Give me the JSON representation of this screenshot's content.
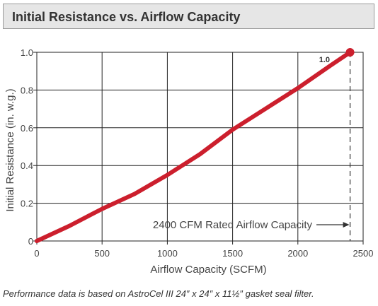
{
  "title": "Initial Resistance vs. Airflow Capacity",
  "caption": "Performance data is based on AstroCel III 24″ x 24″ x 11½″ gasket seal filter.",
  "chart_data": {
    "type": "line",
    "xlabel": "Airflow Capacity (SCFM)",
    "ylabel": "Initial Resistance (in. w.g.)",
    "xlim": [
      0,
      2500
    ],
    "ylim": [
      0,
      1.0
    ],
    "x_ticks": [
      "0",
      "500",
      "1000",
      "1500",
      "2000",
      "2500"
    ],
    "y_ticks": [
      "0",
      "0.2",
      "0.4",
      "0.6",
      "0.8",
      "1.0"
    ],
    "grid": true,
    "series": [
      {
        "x": [
          0,
          250,
          500,
          750,
          1000,
          1250,
          1500,
          1750,
          2000,
          2250,
          2400
        ],
        "y": [
          0,
          0.08,
          0.17,
          0.25,
          0.35,
          0.46,
          0.59,
          0.7,
          0.81,
          0.93,
          1.0
        ],
        "color": "#cc1f2d"
      }
    ],
    "annotations": {
      "rated_value": 2400,
      "rated_label": "2400 CFM Rated Airflow Capacity",
      "end_value_label": "1.0"
    }
  }
}
